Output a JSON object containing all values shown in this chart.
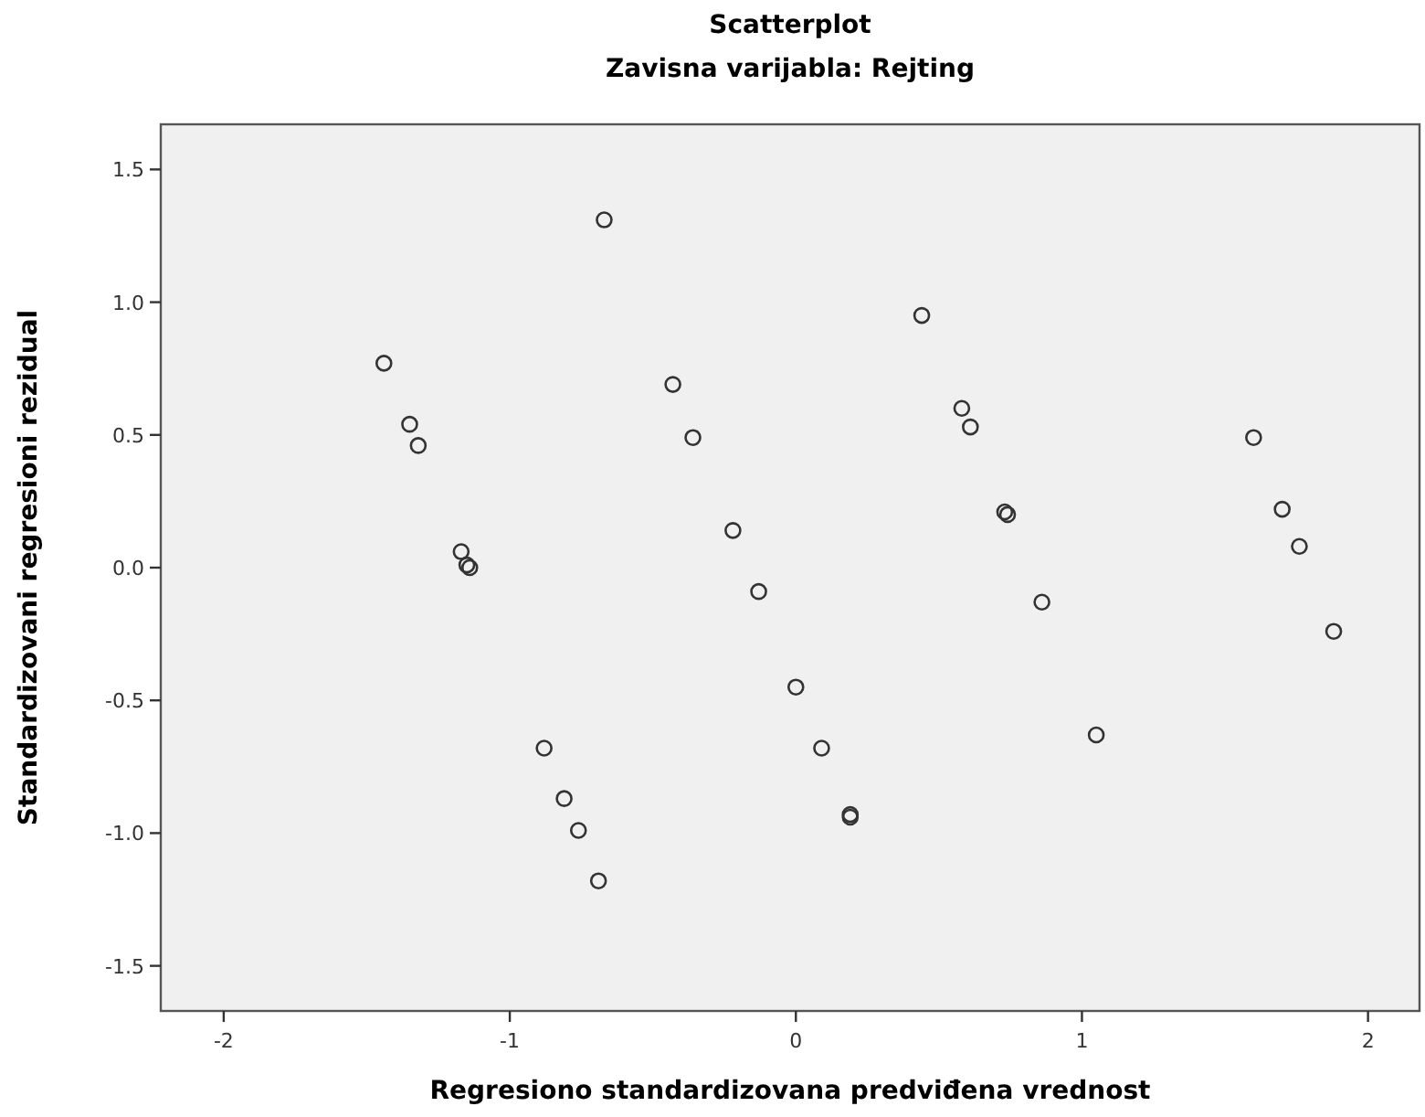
{
  "chart_data": {
    "type": "scatter",
    "title": "Scatterplot",
    "subtitle": "Zavisna varijabla: Rejting",
    "xlabel": "Regresiono standardizovana predviđena vrednost",
    "ylabel": "Standardizovani regresioni rezidual",
    "x": [
      -0.67,
      -1.44,
      -1.35,
      -1.32,
      -1.17,
      -1.15,
      -1.14,
      -0.43,
      -0.36,
      -0.22,
      -0.13,
      0.44,
      0.58,
      0.61,
      0.73,
      0.74,
      1.6,
      1.7,
      1.76,
      0.86,
      0.0,
      -0.88,
      -0.81,
      -0.76,
      -0.69,
      0.09,
      0.19,
      0.19,
      1.05,
      1.88
    ],
    "series": [
      {
        "color": "#333333",
        "values": [
          1.31,
          0.77,
          0.54,
          0.46,
          0.06,
          0.01,
          0.0,
          0.69,
          0.49,
          0.14,
          -0.09,
          0.95,
          0.6,
          0.53,
          0.21,
          0.2,
          0.49,
          0.22,
          0.08,
          -0.13,
          -0.45,
          -0.68,
          -0.87,
          -0.99,
          -1.18,
          -0.68,
          -0.94,
          -0.93,
          -0.63,
          -0.24
        ]
      }
    ],
    "xlim": [
      -2.22,
      2.18
    ],
    "ylim": [
      -1.67,
      1.67
    ],
    "xticks": [
      {
        "value": -2,
        "label": "-2"
      },
      {
        "value": -1,
        "label": "-1"
      },
      {
        "value": 0,
        "label": "0"
      },
      {
        "value": 1,
        "label": "1"
      },
      {
        "value": 2,
        "label": "2"
      }
    ],
    "yticks": [
      {
        "value": -1.5,
        "label": "-1.5"
      },
      {
        "value": -1,
        "label": "-1.0"
      },
      {
        "value": -0.5,
        "label": "-0.5"
      },
      {
        "value": 0,
        "label": "0.0"
      },
      {
        "value": 0.5,
        "label": "0.5"
      },
      {
        "value": 1,
        "label": "1.0"
      },
      {
        "value": 1.5,
        "label": "1.5"
      }
    ],
    "marker": "circle",
    "grid": false
  }
}
